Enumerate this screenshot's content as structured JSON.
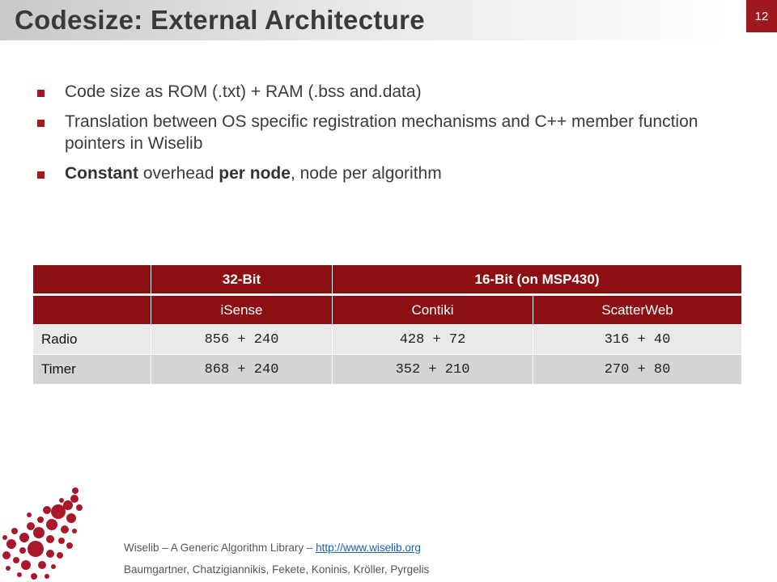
{
  "slide": {
    "title": "Codesize: External Architecture",
    "page_number": "12"
  },
  "bullets": [
    {
      "parts": [
        {
          "text": "Code size as ROM (.txt) + RAM (.bss and.data)",
          "bold": false
        }
      ]
    },
    {
      "parts": [
        {
          "text": "Translation between OS specific registration mechanisms and C++ member function pointers in Wiselib",
          "bold": false
        }
      ]
    },
    {
      "parts": [
        {
          "text": "Constant",
          "bold": true
        },
        {
          "text": " overhead ",
          "bold": false
        },
        {
          "text": "per node",
          "bold": true
        },
        {
          "text": ", node per algorithm",
          "bold": false
        }
      ]
    }
  ],
  "table": {
    "group_headers": [
      "32-Bit",
      "16-Bit (on MSP430)"
    ],
    "columns": [
      "iSense",
      "Contiki",
      "ScatterWeb"
    ],
    "rows": [
      {
        "label": "Radio",
        "values": [
          "856 + 240",
          "428 + 72",
          "316 + 40"
        ]
      },
      {
        "label": "Timer",
        "values": [
          "868 + 240",
          "352 + 210",
          "270 + 80"
        ]
      }
    ]
  },
  "footer": {
    "line1_text": "Wiselib – A Generic Algorithm Library – ",
    "link_text": "http://www.wiselib.org",
    "line2": "Baumgartner, Chatzigiannikis, Fekete, Koninis, Kröller, Pyrgelis"
  },
  "colors": {
    "accent": "#9e1a1f",
    "table_header": "#8c0f12"
  }
}
